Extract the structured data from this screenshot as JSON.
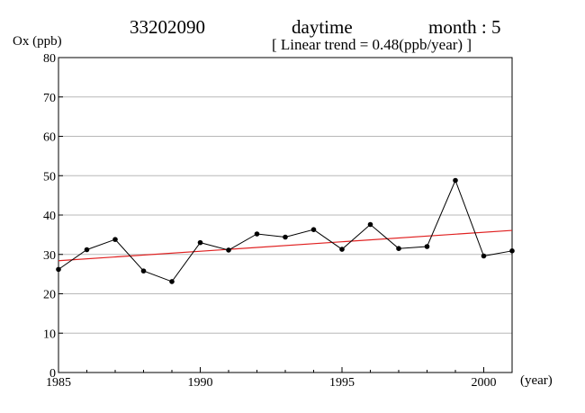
{
  "header": {
    "station": "33202090",
    "period": "daytime",
    "month_label": "month : 5",
    "trend_label": "[ Linear trend = 0.48(ppb/year) ]"
  },
  "chart_data": {
    "type": "line",
    "ylabel": "Ox (ppb)",
    "xlabel": "(year)",
    "xlim": [
      1985,
      2001
    ],
    "ylim": [
      0,
      80
    ],
    "x_ticks": [
      1985,
      1990,
      1995,
      2000
    ],
    "y_ticks": [
      0,
      10,
      20,
      30,
      40,
      50,
      60,
      70,
      80
    ],
    "grid": "horizontal",
    "series": [
      {
        "color": "#000000",
        "markers": true,
        "x": [
          1985,
          1986,
          1987,
          1988,
          1989,
          1990,
          1991,
          1992,
          1993,
          1994,
          1995,
          1996,
          1997,
          1998,
          1999,
          2000,
          2001
        ],
        "values": [
          26.2,
          31.2,
          33.8,
          25.8,
          23.1,
          33.0,
          31.1,
          35.2,
          34.4,
          36.3,
          31.3,
          37.6,
          31.5,
          32.0,
          48.8,
          29.6,
          30.9
        ]
      }
    ],
    "trend_line": {
      "color": "#e02020",
      "x": [
        1985,
        2001
      ],
      "values": [
        28.4,
        36.1
      ]
    }
  }
}
